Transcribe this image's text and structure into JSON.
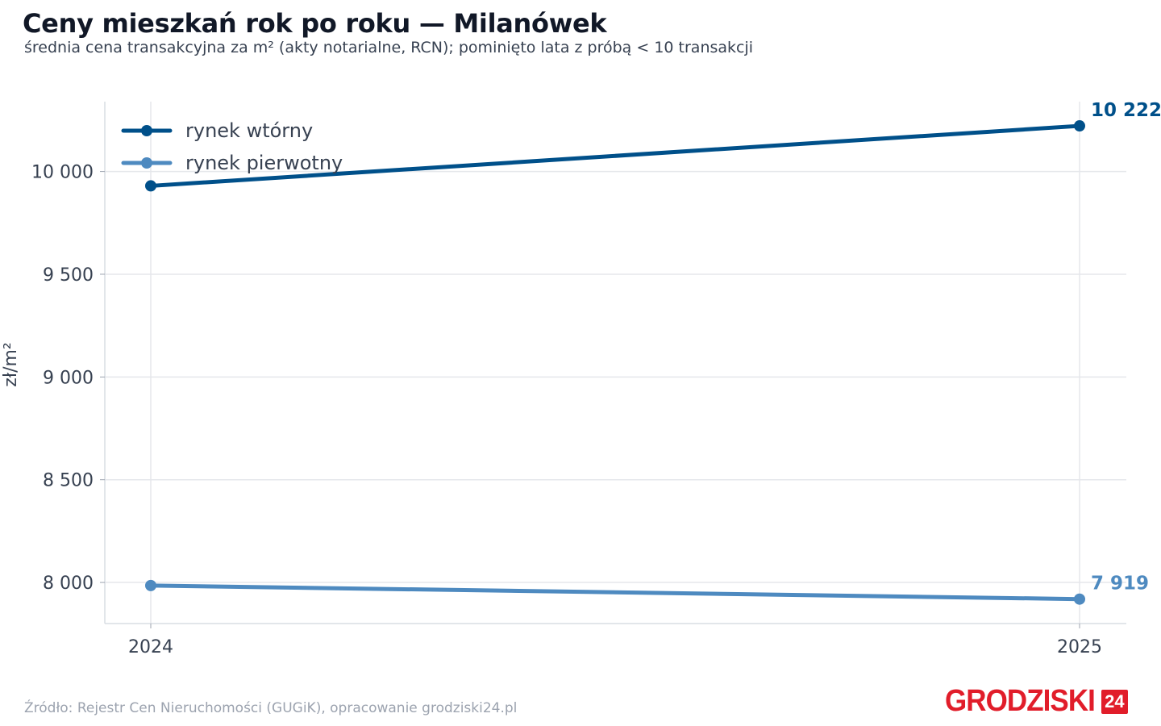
{
  "title": "Ceny mieszkań rok po roku — Milanówek",
  "subtitle": "średnia cena transakcyjna za m² (akty notarialne, RCN); pominięto lata z próbą < 10 transakcji",
  "source": "Źródło: Rejestr Cen Nieruchomości (GUGiK), opracowanie grodziski24.pl",
  "logo": {
    "text": "GRODZISKI",
    "badge": "24"
  },
  "chart_data": {
    "type": "line",
    "title": "Ceny mieszkań rok po roku — Milanówek",
    "subtitle": "średnia cena transakcyjna za m² (akty notarialne, RCN); pominięto lata z próbą < 10 transakcji",
    "xlabel": "",
    "ylabel": "zł/m²",
    "categories": [
      "2024",
      "2025"
    ],
    "ylim": [
      7800,
      10340
    ],
    "yticks": [
      8000,
      8500,
      9000,
      9500,
      10000
    ],
    "ytick_labels": [
      "8 000",
      "8 500",
      "9 000",
      "9 500",
      "10 000"
    ],
    "grid": true,
    "legend_position": "top-left",
    "series": [
      {
        "name": "rynek wtórny",
        "values": [
          9930,
          10222
        ],
        "end_label": "10 222",
        "color": "#00508a"
      },
      {
        "name": "rynek pierwotny",
        "values": [
          7985,
          7919
        ],
        "end_label": "7 919",
        "color": "#4e8ac0"
      }
    ]
  }
}
